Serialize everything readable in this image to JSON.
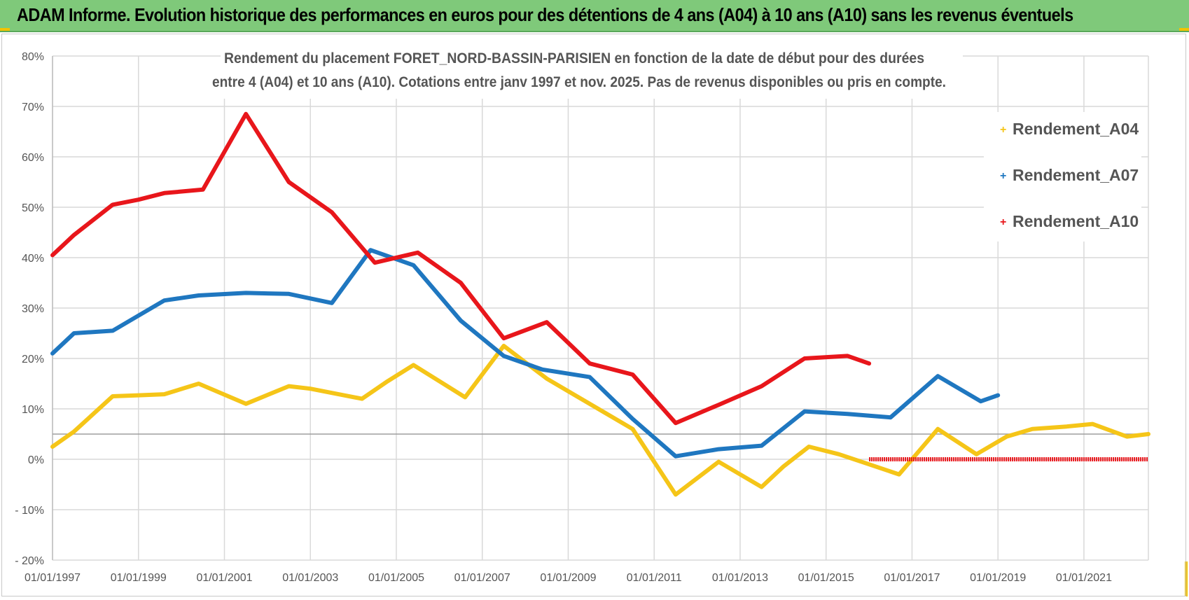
{
  "header": {
    "title": "ADAM Informe. Evolution historique des performances en euros pour des détentions de 4 ans (A04) à 10 ans (A10) sans les revenus éventuels"
  },
  "colors": {
    "banner": "#7fc97a",
    "A04": "#f5c518",
    "A07": "#1f77c0",
    "A10": "#e8161b"
  },
  "chart_data": {
    "type": "line",
    "title_line1": "Rendement du placement FORET_NORD-BASSIN-PARISIEN en fonction de la date de début pour des durées",
    "title_line2": "entre 4 (A04) et 10 ans (A10). Cotations entre janv 1997 et nov. 2025. Pas de revenus disponibles ou pris en compte.",
    "xlabel": "",
    "ylabel": "",
    "x_range": [
      1997.0,
      2022.5
    ],
    "ylim": [
      -20,
      80
    ],
    "y_ticks": [
      -20,
      -10,
      0,
      10,
      20,
      30,
      40,
      50,
      60,
      70,
      80
    ],
    "y_tick_labels": [
      "- 20%",
      "- 10%",
      "0%",
      "10%",
      "20%",
      "30%",
      "40%",
      "50%",
      "60%",
      "70%",
      "80%"
    ],
    "x_ticks": [
      1997,
      1999,
      2001,
      2003,
      2005,
      2007,
      2009,
      2011,
      2013,
      2015,
      2017,
      2019,
      2021
    ],
    "x_tick_labels": [
      "01/01/1997",
      "01/01/1999",
      "01/01/2001",
      "01/01/2003",
      "01/01/2005",
      "01/01/2007",
      "01/01/2009",
      "01/01/2011",
      "01/01/2013",
      "01/01/2015",
      "01/01/2017",
      "01/01/2019",
      "01/01/2021"
    ],
    "reference_line": 5,
    "legend": [
      "Rendement_A04",
      "Rendement_A07",
      "Rendement_A10"
    ],
    "series": [
      {
        "name": "Rendement_A04",
        "color": "#f5c518",
        "x": [
          1997.0,
          1997.5,
          1998.4,
          1999.0,
          1999.6,
          2000.4,
          2001.5,
          2002.5,
          2003.0,
          2004.2,
          2004.8,
          2005.4,
          2006.0,
          2006.6,
          2007.5,
          2008.5,
          2009.2,
          2009.8,
          2010.5,
          2011.5,
          2012.5,
          2013.5,
          2014.0,
          2014.6,
          2015.3,
          2016.0,
          2016.7,
          2017.6,
          2018.5,
          2019.2,
          2019.8,
          2020.6,
          2021.2,
          2022.0,
          2022.5
        ],
        "values": [
          2.5,
          5.5,
          12.5,
          12.7,
          12.9,
          15,
          11,
          14.5,
          14,
          12,
          15.5,
          18.7,
          15.5,
          12.3,
          22.5,
          16,
          12.5,
          9.5,
          6,
          -7,
          -0.5,
          -5.5,
          -1.5,
          2.5,
          1,
          -1,
          -3,
          6,
          1,
          4.5,
          6,
          6.5,
          7,
          4.5,
          5
        ]
      },
      {
        "name": "Rendement_A07",
        "color": "#1f77c0",
        "x": [
          1997.0,
          1997.5,
          1998.4,
          1999.0,
          1999.6,
          2000.4,
          2001.5,
          2002.5,
          2003.5,
          2004.4,
          2005.4,
          2006.5,
          2007.5,
          2008.4,
          2009.5,
          2010.5,
          2011.5,
          2012.5,
          2013.5,
          2014.5,
          2015.5,
          2016.5,
          2017.6,
          2018.6,
          2019.0
        ],
        "values": [
          21,
          25,
          25.5,
          28.5,
          31.5,
          32.5,
          33,
          32.8,
          31,
          41.5,
          38.5,
          27.5,
          20.5,
          17.8,
          16.3,
          8,
          0.6,
          2,
          2.7,
          9.5,
          9,
          8.3,
          16.5,
          11.5,
          12.7
        ]
      },
      {
        "name": "Rendement_A10",
        "color": "#e8161b",
        "x": [
          1997.0,
          1997.5,
          1998.4,
          1999.0,
          1999.6,
          2000.5,
          2001.5,
          2002.5,
          2003.5,
          2004.5,
          2005.5,
          2006.5,
          2007.5,
          2008.5,
          2009.5,
          2010.5,
          2011.5,
          2012.5,
          2013.5,
          2014.5,
          2015.5,
          2016.0
        ],
        "values": [
          40.5,
          44.5,
          50.5,
          51.5,
          52.8,
          53.5,
          68.5,
          55,
          49,
          39,
          41,
          35,
          24,
          27.2,
          19,
          16.8,
          7.2,
          10.8,
          14.5,
          20,
          20.5,
          19
        ],
        "zero_segment_x": [
          2016.0,
          2022.5
        ],
        "zero_segment_value": 0
      }
    ]
  }
}
